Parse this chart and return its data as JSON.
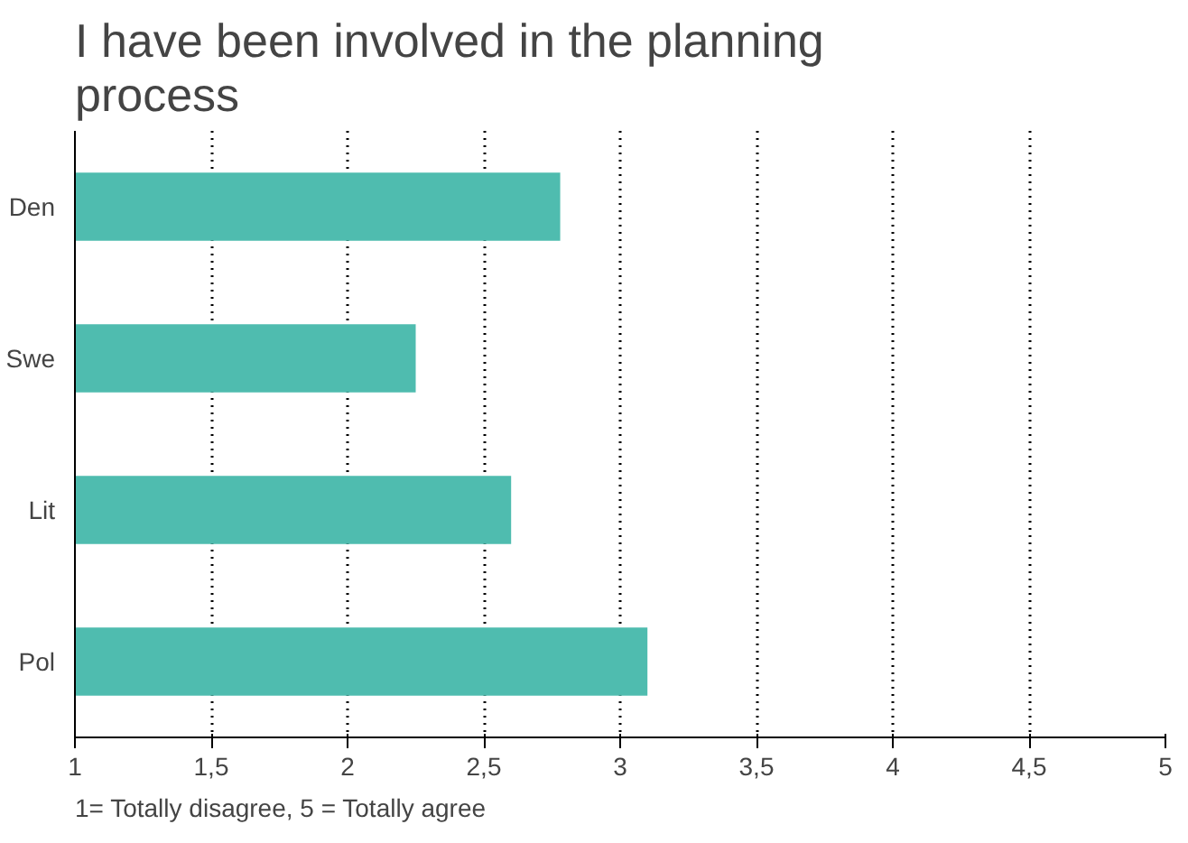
{
  "chart_data": {
    "type": "bar",
    "orientation": "horizontal",
    "title": "I have been involved in the planning process",
    "categories": [
      "Den",
      "Swe",
      "Lit",
      "Pol"
    ],
    "values": [
      2.78,
      2.25,
      2.6,
      3.1
    ],
    "color": "#4fbcaf",
    "xlim": [
      1,
      5
    ],
    "xticks": [
      1,
      {
        "value": 1.5,
        "label": "1,5"
      },
      2,
      {
        "value": 2.5,
        "label": "2,5"
      },
      3,
      {
        "value": 3.5,
        "label": "3,5"
      },
      4,
      {
        "value": 4.5,
        "label": "4,5"
      },
      5
    ],
    "grid": "x",
    "annotations": [
      "1= Totally disagree, 5 = Totally agree"
    ]
  }
}
